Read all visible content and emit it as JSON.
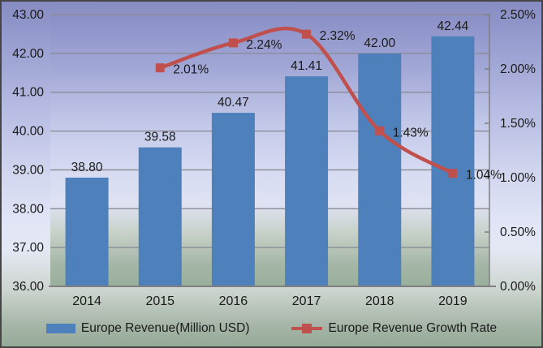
{
  "chart_data": {
    "type": "bar",
    "combo": "bar+line",
    "title": "",
    "categories": [
      "2014",
      "2015",
      "2016",
      "2017",
      "2018",
      "2019"
    ],
    "series": [
      {
        "name": "Europe Revenue(Million USD)",
        "type": "bar",
        "axis": "left",
        "color": "#4E81BC",
        "values": [
          38.8,
          39.58,
          40.47,
          41.41,
          42.0,
          42.44
        ],
        "data_labels": [
          "38.80",
          "39.58",
          "40.47",
          "41.41",
          "42.00",
          "42.44"
        ]
      },
      {
        "name": "Europe Revenue Growth Rate",
        "type": "line",
        "axis": "right",
        "color": "#C0504D",
        "smooth": true,
        "marker": "square",
        "values": [
          null,
          2.01,
          2.24,
          2.32,
          1.43,
          1.04
        ],
        "data_labels": [
          null,
          "2.01%",
          "2.24%",
          "2.32%",
          "1.43%",
          "1.04%"
        ]
      }
    ],
    "axes": {
      "left": {
        "min": 36,
        "max": 43,
        "step": 1,
        "tick_labels": [
          "36.00",
          "37.00",
          "38.00",
          "39.00",
          "40.00",
          "41.00",
          "42.00",
          "43.00"
        ]
      },
      "right": {
        "min": 0,
        "max": 2.5,
        "step": 0.5,
        "tick_labels": [
          "0.00%",
          "0.50%",
          "1.00%",
          "1.50%",
          "2.00%",
          "2.50%"
        ]
      }
    },
    "grid": true,
    "legend": {
      "position": "bottom",
      "entries": [
        "Europe Revenue(Million USD)",
        "Europe Revenue Growth Rate"
      ]
    }
  },
  "colors": {
    "bar": "#4E81BC",
    "line": "#C0504D",
    "gridline": "#8C8C96",
    "axis_line": "#7F7F7F",
    "text": "#1A1A1A",
    "bg_top": "#878CC2",
    "bg_light": "#E4E8F4",
    "bg_bottom": "#96AA98",
    "border": "#464646"
  }
}
